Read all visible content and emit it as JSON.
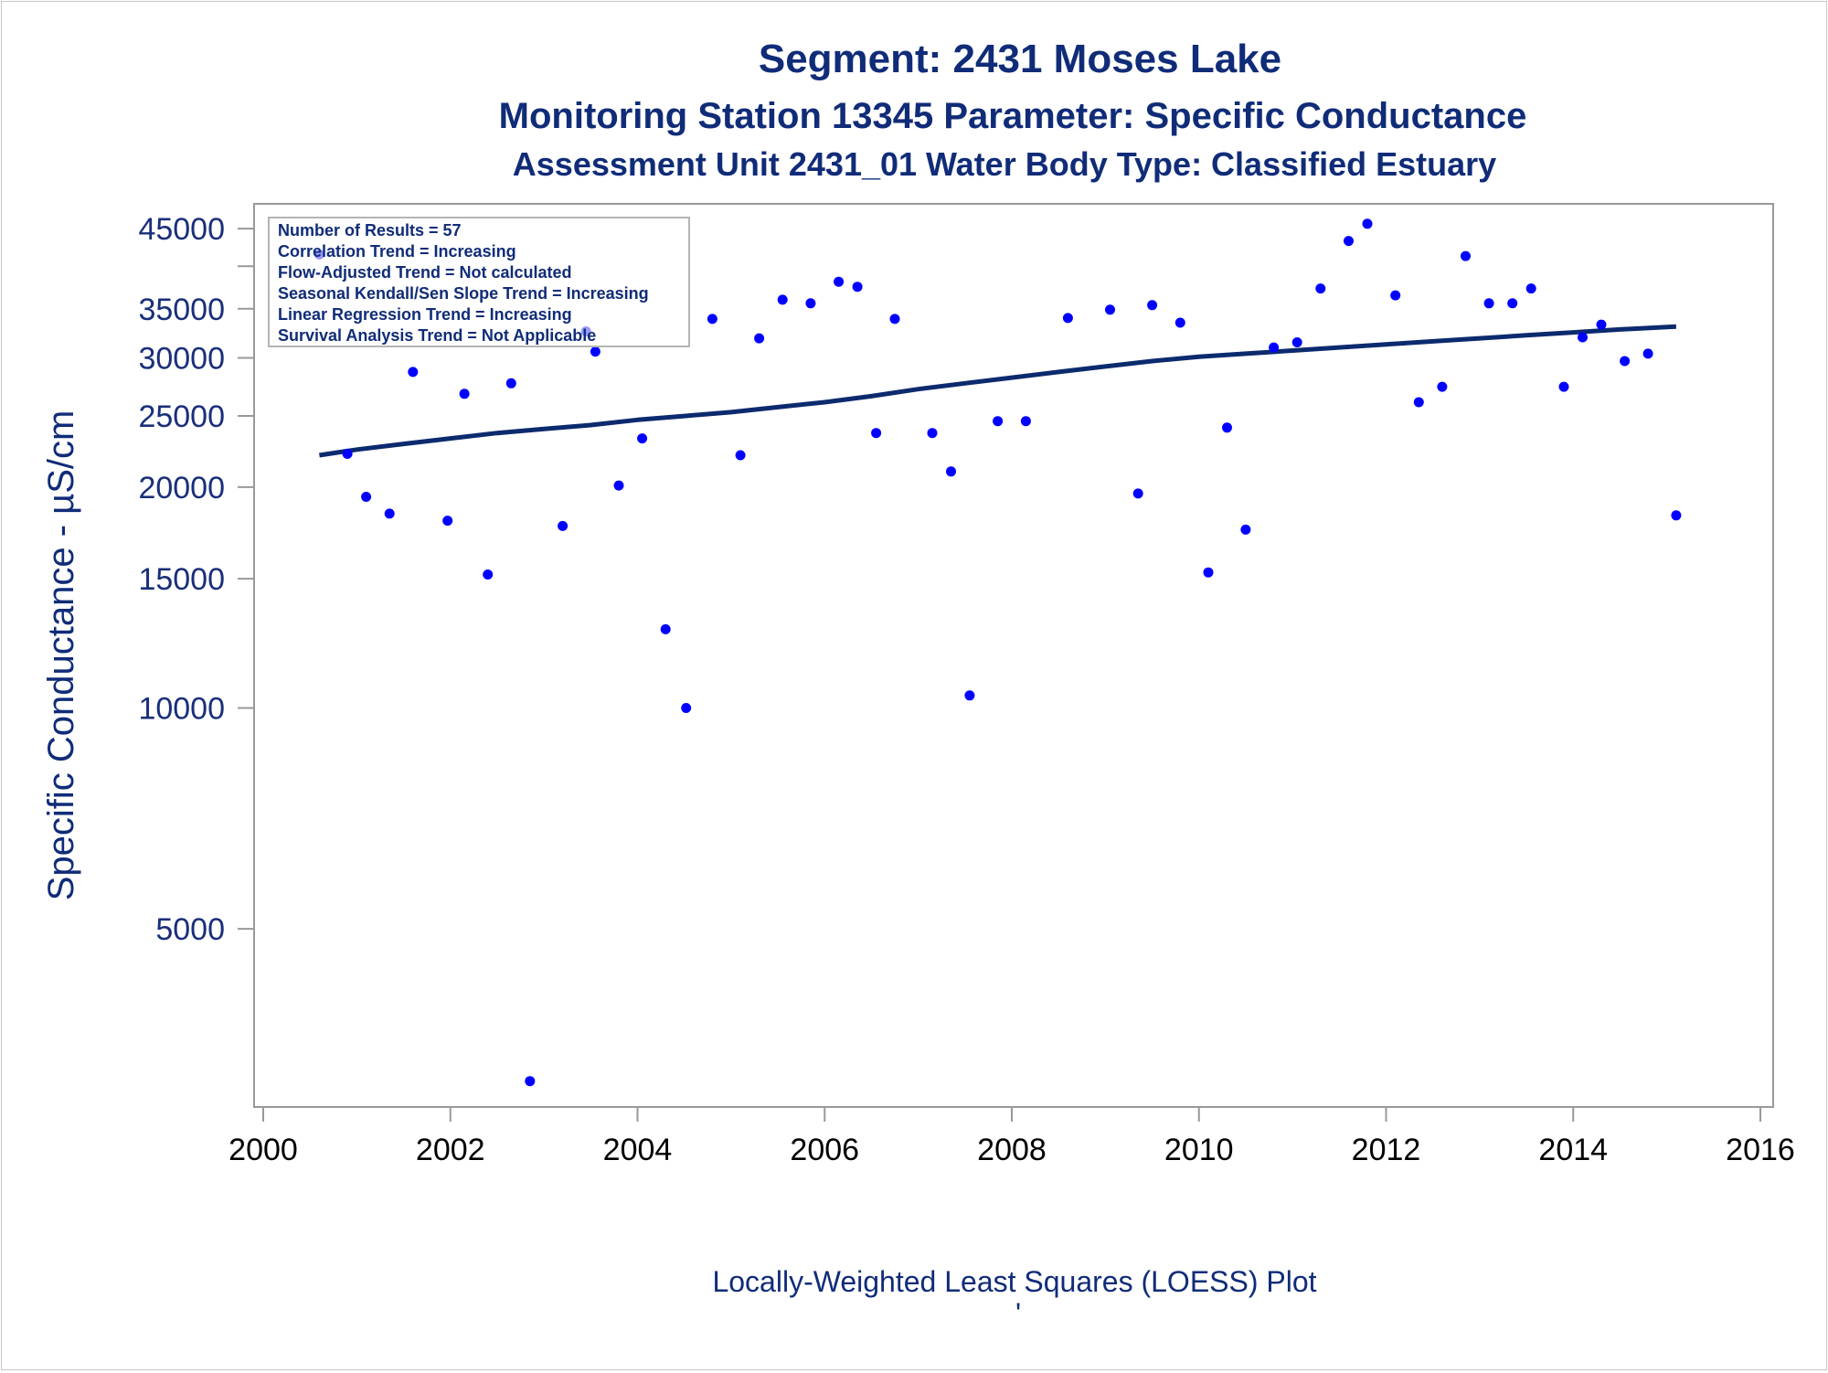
{
  "chart_data": {
    "type": "scatter",
    "title": "Segment: 2431  Moses Lake",
    "subtitle": "Monitoring Station 13345 Parameter: Specific Conductance",
    "subtitle2": "Assessment Unit 2431_01   Water Body Type: Classified Estuary",
    "ylabel": "Specific Conductance -  µS/cm",
    "xlabel": "",
    "footnote": "Locally-Weighted Least Squares (LOESS) Plot",
    "footnote_mark": "'",
    "y_scale": "log",
    "xlim": [
      2000,
      2016
    ],
    "ylim": [
      2950,
      47000
    ],
    "x_ticks": [
      "2000",
      "2002",
      "2004",
      "2006",
      "2008",
      "2010",
      "2012",
      "2014",
      "2016"
    ],
    "y_ticks": [
      {
        "value": 5000,
        "label": "5000"
      },
      {
        "value": 10000,
        "label": "10000"
      },
      {
        "value": 15000,
        "label": "15000"
      },
      {
        "value": 20000,
        "label": "20000"
      },
      {
        "value": 25000,
        "label": "25000"
      },
      {
        "value": 30000,
        "label": "30000"
      },
      {
        "value": 35000,
        "label": "35000"
      },
      {
        "value": 45000,
        "label": "45000"
      }
    ],
    "y_minor_ticks": [
      40000
    ],
    "stats_box": [
      "Number of Results = 57",
      "Correlation Trend = Increasing",
      "Flow-Adjusted Trend = Not calculated",
      "Seasonal Kendall/Sen Slope Trend = Increasing",
      "Linear Regression Trend = Increasing",
      "Survival Analysis Trend = Not Applicable"
    ],
    "series": [
      {
        "type": "scatter",
        "color": "#0000ff",
        "points": [
          [
            2000.6,
            41500
          ],
          [
            2000.9,
            22200
          ],
          [
            2001.1,
            19400
          ],
          [
            2001.35,
            18400
          ],
          [
            2001.6,
            28700
          ],
          [
            2001.97,
            18000
          ],
          [
            2002.15,
            26800
          ],
          [
            2002.4,
            15200
          ],
          [
            2002.65,
            27700
          ],
          [
            2002.85,
            3100
          ],
          [
            2003.2,
            17700
          ],
          [
            2003.45,
            32600
          ],
          [
            2003.55,
            30600
          ],
          [
            2003.8,
            20100
          ],
          [
            2004.05,
            23300
          ],
          [
            2004.3,
            12800
          ],
          [
            2004.52,
            10000
          ],
          [
            2004.8,
            33900
          ],
          [
            2005.1,
            22100
          ],
          [
            2005.3,
            31900
          ],
          [
            2005.55,
            36000
          ],
          [
            2005.85,
            35600
          ],
          [
            2006.15,
            38100
          ],
          [
            2006.35,
            37500
          ],
          [
            2006.55,
            23700
          ],
          [
            2006.75,
            33900
          ],
          [
            2007.15,
            23700
          ],
          [
            2007.35,
            21000
          ],
          [
            2007.55,
            10400
          ],
          [
            2007.85,
            24600
          ],
          [
            2008.15,
            24600
          ],
          [
            2008.6,
            34000
          ],
          [
            2009.05,
            34900
          ],
          [
            2009.35,
            19600
          ],
          [
            2009.5,
            35400
          ],
          [
            2009.8,
            33500
          ],
          [
            2010.1,
            15300
          ],
          [
            2010.3,
            24100
          ],
          [
            2010.5,
            17500
          ],
          [
            2010.8,
            31000
          ],
          [
            2011.05,
            31500
          ],
          [
            2011.3,
            37300
          ],
          [
            2011.6,
            43300
          ],
          [
            2011.8,
            45700
          ],
          [
            2012.1,
            36500
          ],
          [
            2012.35,
            26100
          ],
          [
            2012.6,
            27400
          ],
          [
            2012.85,
            41300
          ],
          [
            2013.1,
            35600
          ],
          [
            2013.35,
            35600
          ],
          [
            2013.55,
            37300
          ],
          [
            2013.9,
            27400
          ],
          [
            2014.1,
            32000
          ],
          [
            2014.3,
            33300
          ],
          [
            2014.55,
            29700
          ],
          [
            2014.8,
            30400
          ],
          [
            2015.1,
            18300
          ]
        ]
      },
      {
        "type": "line",
        "color": "#0c2a6e",
        "points": [
          [
            2000.6,
            22100
          ],
          [
            2001.0,
            22500
          ],
          [
            2001.5,
            22900
          ],
          [
            2002.0,
            23300
          ],
          [
            2002.5,
            23700
          ],
          [
            2003.0,
            24000
          ],
          [
            2003.5,
            24300
          ],
          [
            2004.0,
            24700
          ],
          [
            2004.5,
            25000
          ],
          [
            2005.0,
            25300
          ],
          [
            2005.5,
            25700
          ],
          [
            2006.0,
            26100
          ],
          [
            2006.5,
            26600
          ],
          [
            2007.0,
            27200
          ],
          [
            2007.5,
            27700
          ],
          [
            2008.0,
            28200
          ],
          [
            2008.5,
            28700
          ],
          [
            2009.0,
            29200
          ],
          [
            2009.5,
            29700
          ],
          [
            2010.0,
            30100
          ],
          [
            2010.5,
            30400
          ],
          [
            2011.0,
            30700
          ],
          [
            2011.5,
            31000
          ],
          [
            2012.0,
            31300
          ],
          [
            2012.5,
            31600
          ],
          [
            2013.0,
            31900
          ],
          [
            2013.5,
            32200
          ],
          [
            2014.0,
            32500
          ],
          [
            2014.5,
            32800
          ],
          [
            2015.1,
            33100
          ]
        ]
      }
    ]
  }
}
